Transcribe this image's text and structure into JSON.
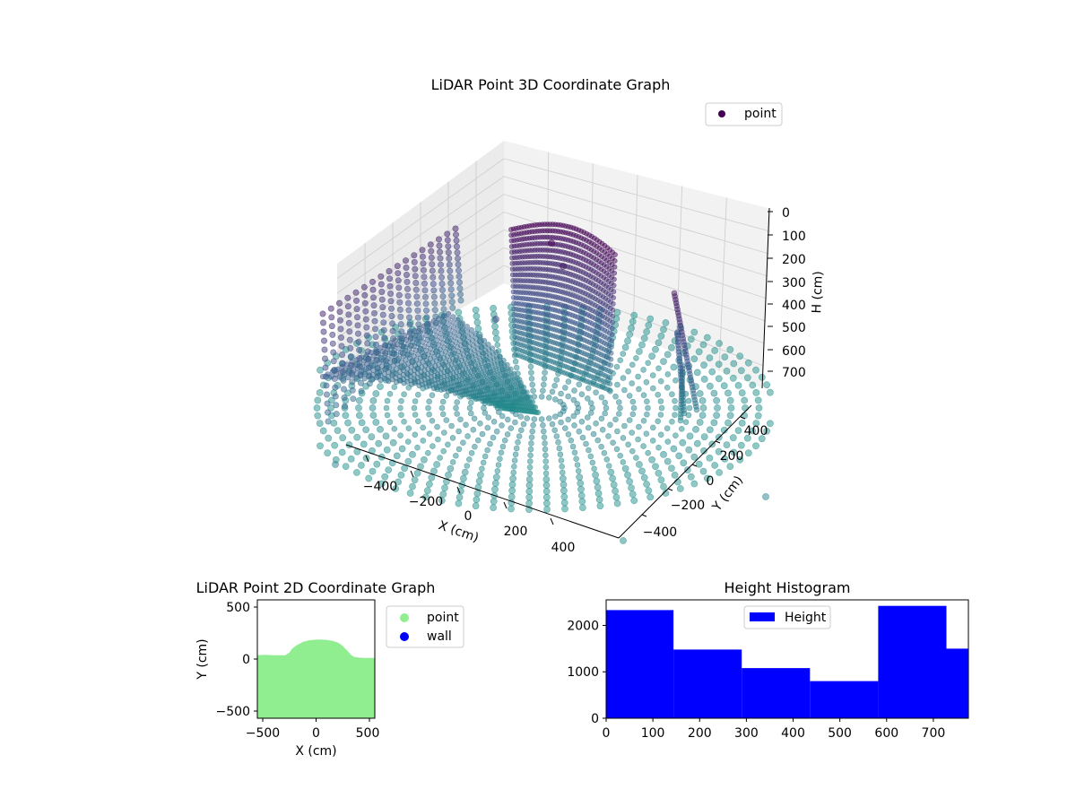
{
  "chart_data": [
    {
      "type": "scatter",
      "projection": "3d",
      "title": "LiDAR Point 3D Coordinate Graph",
      "xlabel": "X (cm)",
      "ylabel": "Y (cm)",
      "zlabel": "H (cm)",
      "x_ticks": [
        "−400",
        "−200",
        "0",
        "200",
        "400"
      ],
      "y_ticks": [
        "−400",
        "−200",
        "0",
        "200",
        "400"
      ],
      "z_ticks": [
        "0",
        "100",
        "200",
        "300",
        "400",
        "500",
        "600",
        "700"
      ],
      "zlim": [
        0,
        775
      ],
      "z_inverted": true,
      "colormap": "viridis",
      "legend": [
        {
          "label": "point",
          "color": "#440154"
        }
      ],
      "legend_position": "top-right"
    },
    {
      "type": "area",
      "title": "LiDAR Point 2D Coordinate Graph",
      "xlabel": "X (cm)",
      "ylabel": "Y (cm)",
      "xlim": [
        -550,
        550
      ],
      "ylim": [
        -550,
        550
      ],
      "x_ticks": [
        "−500",
        "0",
        "500"
      ],
      "y_ticks": [
        "−500",
        "0",
        "500"
      ],
      "upper_boundary": {
        "x": [
          -550,
          -510,
          -460,
          -400,
          -340,
          -290,
          -250,
          -220,
          -180,
          -120,
          -60,
          0,
          50,
          100,
          150,
          200,
          240,
          270,
          300,
          330,
          360,
          420,
          480,
          550
        ],
        "y": [
          35,
          38,
          38,
          36,
          35,
          34,
          60,
          100,
          130,
          160,
          175,
          180,
          182,
          178,
          170,
          155,
          130,
          100,
          70,
          35,
          18,
          12,
          10,
          10
        ]
      },
      "lower_bound": -550,
      "series": [
        {
          "name": "point",
          "color": "#90ee90"
        },
        {
          "name": "wall",
          "color": "#0000ff"
        }
      ],
      "legend_position": "outside-right"
    },
    {
      "type": "bar",
      "subtype": "histogram",
      "title": "Height Histogram",
      "xlim": [
        0,
        775
      ],
      "ylim": [
        0,
        2550
      ],
      "bin_edges": [
        0,
        144,
        290,
        436,
        582,
        728,
        775
      ],
      "values": [
        2330,
        1480,
        1080,
        800,
        2420,
        1500
      ],
      "x_ticks": [
        "0",
        "100",
        "200",
        "300",
        "400",
        "500",
        "600",
        "700"
      ],
      "y_ticks": [
        "0",
        "1000",
        "2000"
      ],
      "series": [
        {
          "name": "Height",
          "color": "#0000ff"
        }
      ],
      "legend_position": "upper-center"
    }
  ]
}
